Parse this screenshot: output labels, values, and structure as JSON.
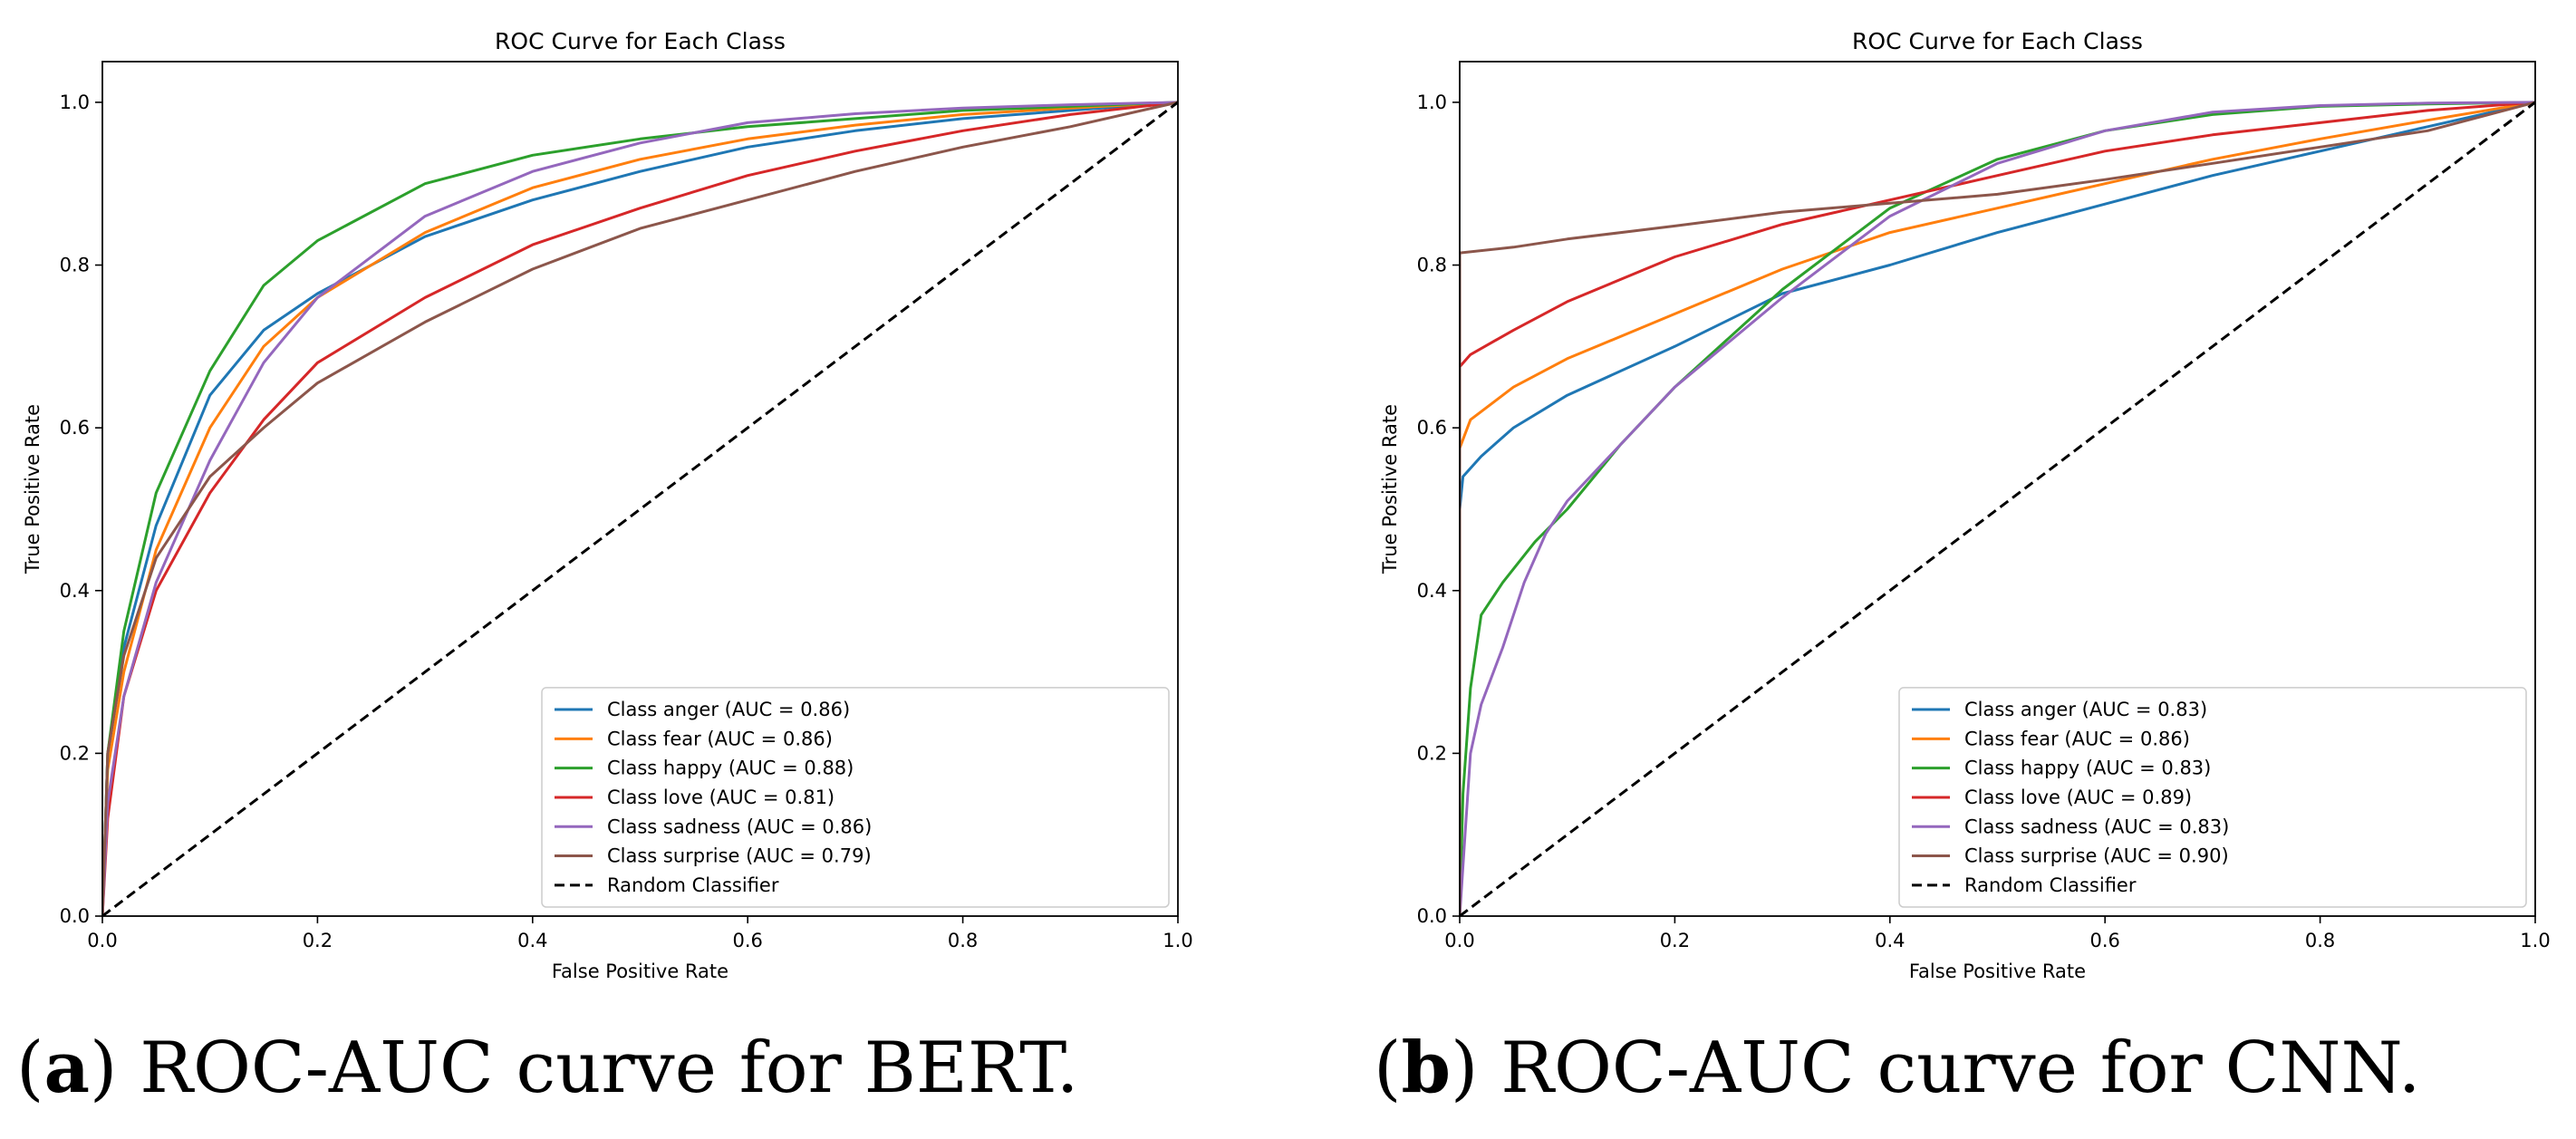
{
  "colors": {
    "anger": "#1f77b4",
    "fear": "#ff7f0e",
    "happy": "#2ca02c",
    "love": "#d62728",
    "sadness": "#9467bd",
    "surprise": "#8c564b",
    "random": "#000000"
  },
  "captions": [
    {
      "label": "a",
      "text": "ROC-AUC curve for BERT."
    },
    {
      "label": "b",
      "text": "ROC-AUC curve for CNN."
    }
  ],
  "chart_data": [
    {
      "type": "line",
      "title": "ROC Curve for Each Class",
      "xlabel": "False Positive Rate",
      "ylabel": "True Positive Rate",
      "xlim": [
        0.0,
        1.0
      ],
      "ylim": [
        0.0,
        1.05
      ],
      "xticks": [
        "0.0",
        "0.2",
        "0.4",
        "0.6",
        "0.8",
        "1.0"
      ],
      "yticks": [
        "0.0",
        "0.2",
        "0.4",
        "0.6",
        "0.8",
        "1.0"
      ],
      "grid": false,
      "legend_position": "lower-right",
      "series": [
        {
          "name": "Class anger (AUC = 0.86)",
          "color_key": "anger",
          "points": [
            [
              0,
              0
            ],
            [
              0.005,
              0.2
            ],
            [
              0.02,
              0.33
            ],
            [
              0.05,
              0.48
            ],
            [
              0.1,
              0.64
            ],
            [
              0.15,
              0.72
            ],
            [
              0.2,
              0.765
            ],
            [
              0.3,
              0.835
            ],
            [
              0.4,
              0.88
            ],
            [
              0.5,
              0.915
            ],
            [
              0.6,
              0.945
            ],
            [
              0.7,
              0.965
            ],
            [
              0.8,
              0.98
            ],
            [
              0.9,
              0.99
            ],
            [
              1.0,
              1.0
            ]
          ]
        },
        {
          "name": "Class fear (AUC = 0.86)",
          "color_key": "fear",
          "points": [
            [
              0,
              0
            ],
            [
              0.005,
              0.18
            ],
            [
              0.02,
              0.3
            ],
            [
              0.05,
              0.45
            ],
            [
              0.1,
              0.6
            ],
            [
              0.15,
              0.7
            ],
            [
              0.2,
              0.76
            ],
            [
              0.3,
              0.84
            ],
            [
              0.4,
              0.895
            ],
            [
              0.5,
              0.93
            ],
            [
              0.6,
              0.955
            ],
            [
              0.7,
              0.972
            ],
            [
              0.8,
              0.985
            ],
            [
              0.9,
              0.993
            ],
            [
              1.0,
              1.0
            ]
          ]
        },
        {
          "name": "Class happy (AUC = 0.88)",
          "color_key": "happy",
          "points": [
            [
              0,
              0
            ],
            [
              0.005,
              0.2
            ],
            [
              0.02,
              0.35
            ],
            [
              0.05,
              0.52
            ],
            [
              0.1,
              0.67
            ],
            [
              0.15,
              0.775
            ],
            [
              0.2,
              0.83
            ],
            [
              0.3,
              0.9
            ],
            [
              0.4,
              0.935
            ],
            [
              0.5,
              0.955
            ],
            [
              0.6,
              0.97
            ],
            [
              0.7,
              0.98
            ],
            [
              0.8,
              0.99
            ],
            [
              0.9,
              0.995
            ],
            [
              1.0,
              1.0
            ]
          ]
        },
        {
          "name": "Class love (AUC = 0.81)",
          "color_key": "love",
          "points": [
            [
              0,
              0
            ],
            [
              0.005,
              0.12
            ],
            [
              0.02,
              0.27
            ],
            [
              0.05,
              0.4
            ],
            [
              0.1,
              0.52
            ],
            [
              0.15,
              0.61
            ],
            [
              0.2,
              0.68
            ],
            [
              0.3,
              0.76
            ],
            [
              0.4,
              0.825
            ],
            [
              0.5,
              0.87
            ],
            [
              0.6,
              0.91
            ],
            [
              0.7,
              0.94
            ],
            [
              0.8,
              0.965
            ],
            [
              0.9,
              0.985
            ],
            [
              1.0,
              1.0
            ]
          ]
        },
        {
          "name": "Class sadness (AUC = 0.86)",
          "color_key": "sadness",
          "points": [
            [
              0,
              0
            ],
            [
              0.005,
              0.14
            ],
            [
              0.02,
              0.27
            ],
            [
              0.05,
              0.41
            ],
            [
              0.1,
              0.56
            ],
            [
              0.15,
              0.68
            ],
            [
              0.2,
              0.76
            ],
            [
              0.3,
              0.86
            ],
            [
              0.4,
              0.915
            ],
            [
              0.5,
              0.95
            ],
            [
              0.6,
              0.975
            ],
            [
              0.7,
              0.986
            ],
            [
              0.8,
              0.993
            ],
            [
              0.9,
              0.997
            ],
            [
              1.0,
              1.0
            ]
          ]
        },
        {
          "name": "Class surprise (AUC = 0.79)",
          "color_key": "surprise",
          "points": [
            [
              0,
              0
            ],
            [
              0.005,
              0.2
            ],
            [
              0.02,
              0.32
            ],
            [
              0.05,
              0.44
            ],
            [
              0.1,
              0.54
            ],
            [
              0.15,
              0.6
            ],
            [
              0.2,
              0.655
            ],
            [
              0.3,
              0.73
            ],
            [
              0.4,
              0.795
            ],
            [
              0.5,
              0.845
            ],
            [
              0.6,
              0.88
            ],
            [
              0.7,
              0.915
            ],
            [
              0.8,
              0.945
            ],
            [
              0.9,
              0.97
            ],
            [
              1.0,
              1.0
            ]
          ]
        },
        {
          "name": "Random Classifier",
          "color_key": "random",
          "dashed": true,
          "points": [
            [
              0,
              0
            ],
            [
              1,
              1
            ]
          ]
        }
      ]
    },
    {
      "type": "line",
      "title": "ROC Curve for Each Class",
      "xlabel": "False Positive Rate",
      "ylabel": "True Positive Rate",
      "xlim": [
        0.0,
        1.0
      ],
      "ylim": [
        0.0,
        1.05
      ],
      "xticks": [
        "0.0",
        "0.2",
        "0.4",
        "0.6",
        "0.8",
        "1.0"
      ],
      "yticks": [
        "0.0",
        "0.2",
        "0.4",
        "0.6",
        "0.8",
        "1.0"
      ],
      "grid": false,
      "legend_position": "lower-right",
      "series": [
        {
          "name": "Class anger (AUC = 0.83)",
          "color_key": "anger",
          "points": [
            [
              0,
              0
            ],
            [
              0,
              0.5
            ],
            [
              0.003,
              0.54
            ],
            [
              0.02,
              0.565
            ],
            [
              0.05,
              0.6
            ],
            [
              0.1,
              0.64
            ],
            [
              0.2,
              0.7
            ],
            [
              0.3,
              0.765
            ],
            [
              0.4,
              0.8
            ],
            [
              0.5,
              0.84
            ],
            [
              0.6,
              0.875
            ],
            [
              0.7,
              0.91
            ],
            [
              0.8,
              0.94
            ],
            [
              0.9,
              0.97
            ],
            [
              1.0,
              1.0
            ]
          ]
        },
        {
          "name": "Class fear (AUC = 0.86)",
          "color_key": "fear",
          "points": [
            [
              0,
              0
            ],
            [
              0,
              0.575
            ],
            [
              0.01,
              0.61
            ],
            [
              0.05,
              0.65
            ],
            [
              0.1,
              0.685
            ],
            [
              0.2,
              0.74
            ],
            [
              0.3,
              0.795
            ],
            [
              0.4,
              0.84
            ],
            [
              0.5,
              0.87
            ],
            [
              0.6,
              0.9
            ],
            [
              0.7,
              0.93
            ],
            [
              0.8,
              0.955
            ],
            [
              0.9,
              0.978
            ],
            [
              1.0,
              1.0
            ]
          ]
        },
        {
          "name": "Class happy (AUC = 0.83)",
          "color_key": "happy",
          "points": [
            [
              0,
              0
            ],
            [
              0.003,
              0.15
            ],
            [
              0.01,
              0.28
            ],
            [
              0.02,
              0.37
            ],
            [
              0.04,
              0.41
            ],
            [
              0.07,
              0.46
            ],
            [
              0.1,
              0.5
            ],
            [
              0.15,
              0.58
            ],
            [
              0.2,
              0.65
            ],
            [
              0.3,
              0.77
            ],
            [
              0.4,
              0.87
            ],
            [
              0.5,
              0.93
            ],
            [
              0.6,
              0.965
            ],
            [
              0.7,
              0.985
            ],
            [
              0.8,
              0.995
            ],
            [
              0.9,
              0.998
            ],
            [
              1.0,
              1.0
            ]
          ]
        },
        {
          "name": "Class love (AUC = 0.89)",
          "color_key": "love",
          "points": [
            [
              0,
              0
            ],
            [
              0,
              0.675
            ],
            [
              0.01,
              0.69
            ],
            [
              0.05,
              0.72
            ],
            [
              0.1,
              0.755
            ],
            [
              0.2,
              0.81
            ],
            [
              0.3,
              0.85
            ],
            [
              0.4,
              0.88
            ],
            [
              0.5,
              0.91
            ],
            [
              0.6,
              0.94
            ],
            [
              0.7,
              0.96
            ],
            [
              0.8,
              0.975
            ],
            [
              0.9,
              0.99
            ],
            [
              1.0,
              1.0
            ]
          ]
        },
        {
          "name": "Class sadness (AUC = 0.83)",
          "color_key": "sadness",
          "points": [
            [
              0,
              0
            ],
            [
              0.005,
              0.1
            ],
            [
              0.01,
              0.2
            ],
            [
              0.02,
              0.26
            ],
            [
              0.04,
              0.33
            ],
            [
              0.06,
              0.41
            ],
            [
              0.08,
              0.47
            ],
            [
              0.1,
              0.51
            ],
            [
              0.15,
              0.58
            ],
            [
              0.2,
              0.65
            ],
            [
              0.3,
              0.76
            ],
            [
              0.4,
              0.86
            ],
            [
              0.5,
              0.925
            ],
            [
              0.6,
              0.965
            ],
            [
              0.7,
              0.988
            ],
            [
              0.8,
              0.996
            ],
            [
              0.9,
              0.999
            ],
            [
              1.0,
              1.0
            ]
          ]
        },
        {
          "name": "Class surprise (AUC = 0.90)",
          "color_key": "surprise",
          "points": [
            [
              0,
              0
            ],
            [
              0,
              0.815
            ],
            [
              0.05,
              0.822
            ],
            [
              0.1,
              0.832
            ],
            [
              0.2,
              0.848
            ],
            [
              0.3,
              0.865
            ],
            [
              0.4,
              0.876
            ],
            [
              0.5,
              0.887
            ],
            [
              0.6,
              0.905
            ],
            [
              0.7,
              0.925
            ],
            [
              0.8,
              0.945
            ],
            [
              0.9,
              0.965
            ],
            [
              1.0,
              1.0
            ]
          ]
        },
        {
          "name": "Random Classifier",
          "color_key": "random",
          "dashed": true,
          "points": [
            [
              0,
              0
            ],
            [
              1,
              1
            ]
          ]
        }
      ]
    }
  ]
}
